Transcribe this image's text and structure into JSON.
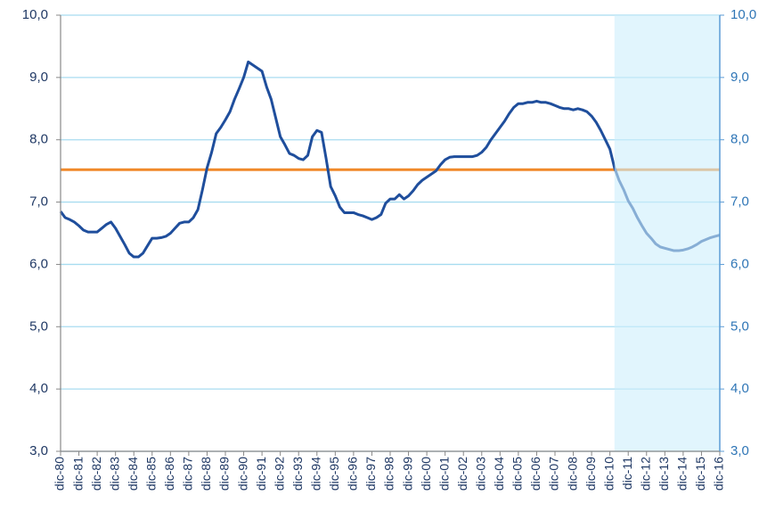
{
  "chart_data": {
    "type": "line",
    "categories": [
      "dic-80",
      null,
      null,
      null,
      "dic-81",
      null,
      null,
      null,
      "dic-82",
      null,
      null,
      null,
      "dic-83",
      null,
      null,
      null,
      "dic-84",
      null,
      null,
      null,
      "dic-85",
      null,
      null,
      null,
      "dic-86",
      null,
      null,
      null,
      "dic-87",
      null,
      null,
      null,
      "dic-88",
      null,
      null,
      null,
      "dic-89",
      null,
      null,
      null,
      "dic-90",
      null,
      null,
      null,
      "dic-91",
      null,
      null,
      null,
      "dic-92",
      null,
      null,
      null,
      "dic-93",
      null,
      null,
      null,
      "dic-94",
      null,
      null,
      null,
      "dic-95",
      null,
      null,
      null,
      "dic-96",
      null,
      null,
      null,
      "dic-97",
      null,
      null,
      null,
      "dic-98",
      null,
      null,
      null,
      "dic-99",
      null,
      null,
      null,
      "dic-00",
      null,
      null,
      null,
      "dic-01",
      null,
      null,
      null,
      "dic-02",
      null,
      null,
      null,
      "dic-03",
      null,
      null,
      null,
      "dic-04",
      null,
      null,
      null,
      "dic-05",
      null,
      null,
      null,
      "dic-06",
      null,
      null,
      null,
      "dic-07",
      null,
      null,
      null,
      "dic-08",
      null,
      null,
      null,
      "dic-09",
      null,
      null,
      null,
      "dic-10",
      null,
      null,
      null,
      "dic-11",
      null,
      null,
      null,
      "dic-12",
      null,
      null,
      null,
      "dic-13",
      null,
      null,
      null,
      "dic-14",
      null,
      null,
      null,
      "dic-15",
      null,
      null,
      null,
      "dic-16"
    ],
    "series": [
      {
        "color": "#1f4e9c",
        "values": [
          6.85,
          6.75,
          6.72,
          6.68,
          6.62,
          6.55,
          6.52,
          6.52,
          6.52,
          6.58,
          6.64,
          6.68,
          6.58,
          6.45,
          6.32,
          6.18,
          6.12,
          6.12,
          6.18,
          6.3,
          6.42,
          6.42,
          6.43,
          6.45,
          6.5,
          6.58,
          6.66,
          6.68,
          6.68,
          6.75,
          6.88,
          7.2,
          7.55,
          7.8,
          8.1,
          8.2,
          8.32,
          8.45,
          8.65,
          8.82,
          9.0,
          9.25,
          9.2,
          9.15,
          9.1,
          8.85,
          8.65,
          8.35,
          8.05,
          7.92,
          7.78,
          7.75,
          7.7,
          7.68,
          7.75,
          8.05,
          8.15,
          8.12,
          7.7,
          7.25,
          7.1,
          6.92,
          6.83,
          6.83,
          6.83,
          6.8,
          6.78,
          6.75,
          6.72,
          6.75,
          6.8,
          6.98,
          7.05,
          7.05,
          7.12,
          7.05,
          7.1,
          7.18,
          7.28,
          7.35,
          7.4,
          7.45,
          7.5,
          7.6,
          7.68,
          7.72,
          7.73,
          7.73,
          7.73,
          7.73,
          7.73,
          7.75,
          7.8,
          7.88,
          8.0,
          8.1,
          8.2,
          8.3,
          8.42,
          8.52,
          8.58,
          8.58,
          8.6,
          8.6,
          8.62,
          8.6,
          8.6,
          8.58,
          8.55,
          8.52,
          8.5,
          8.5,
          8.48,
          8.5,
          8.48,
          8.45,
          8.38,
          8.28,
          8.15,
          8.0,
          7.85,
          7.55,
          7.35,
          7.2,
          7.02,
          6.9,
          6.75,
          6.62,
          6.5,
          6.42,
          6.33,
          6.28,
          6.26,
          6.24,
          6.22,
          6.22,
          6.23,
          6.25,
          6.28,
          6.32,
          6.37,
          6.4,
          6.43,
          6.45,
          6.47
        ]
      }
    ],
    "reference_line": {
      "value": 7.52,
      "color": "#f0892a"
    },
    "forecast": {
      "start": 121,
      "color": "#cdeefb"
    },
    "ylim": [
      3,
      10
    ],
    "yticks": [
      {
        "value": 3,
        "label": "3,0"
      },
      {
        "value": 4,
        "label": "4,0"
      },
      {
        "value": 5,
        "label": "5,0"
      },
      {
        "value": 6,
        "label": "6,0"
      },
      {
        "value": 7,
        "label": "7,0"
      },
      {
        "value": 8,
        "label": "8,0"
      },
      {
        "value": 9,
        "label": "9,0"
      },
      {
        "value": 10,
        "label": "10,0"
      }
    ],
    "y2lim": [
      3,
      10
    ],
    "y2ticks": [
      {
        "value": 3,
        "label": "3,0"
      },
      {
        "value": 4,
        "label": "4,0"
      },
      {
        "value": 5,
        "label": "5,0"
      },
      {
        "value": 6,
        "label": "6,0"
      },
      {
        "value": 7,
        "label": "7,0"
      },
      {
        "value": 8,
        "label": "8,0"
      },
      {
        "value": 9,
        "label": "9,0"
      },
      {
        "value": 10,
        "label": "10,0"
      }
    ],
    "grid": true
  }
}
